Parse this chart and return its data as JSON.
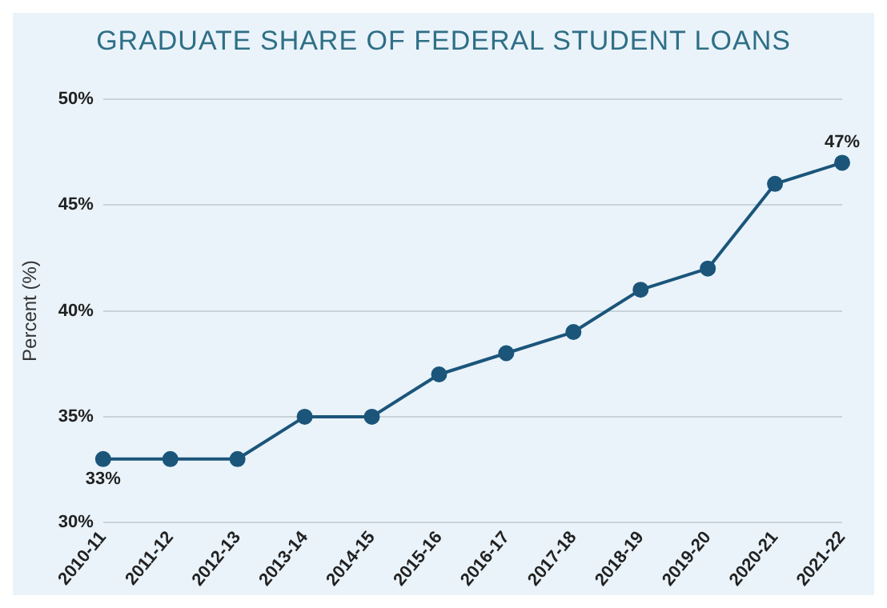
{
  "chart_data": {
    "type": "line",
    "title": "GRADUATE SHARE OF FEDERAL STUDENT LOANS",
    "ylabel": "Percent (%)",
    "categories": [
      "2010-11",
      "2011-12",
      "2012-13",
      "2013-14",
      "2014-15",
      "2015-16",
      "2016-17",
      "2017-18",
      "2018-19",
      "2019-20",
      "2020-21",
      "2021-22"
    ],
    "series": [
      {
        "color": "#1b557a",
        "values": [
          33,
          33,
          33,
          35,
          35,
          37,
          38,
          39,
          41,
          42,
          46,
          47
        ],
        "value_labels": [
          "33%",
          null,
          null,
          null,
          null,
          null,
          null,
          null,
          null,
          null,
          null,
          "47%"
        ]
      }
    ],
    "ylim": [
      30,
      50
    ],
    "yticks": [
      {
        "value": 30,
        "label": "30%"
      },
      {
        "value": 35,
        "label": "35%"
      },
      {
        "value": 40,
        "label": "40%"
      },
      {
        "value": 45,
        "label": "45%"
      },
      {
        "value": 50,
        "label": "50%"
      }
    ],
    "grid": "y",
    "marker": "circle",
    "line_style": "solid",
    "legend": false
  }
}
